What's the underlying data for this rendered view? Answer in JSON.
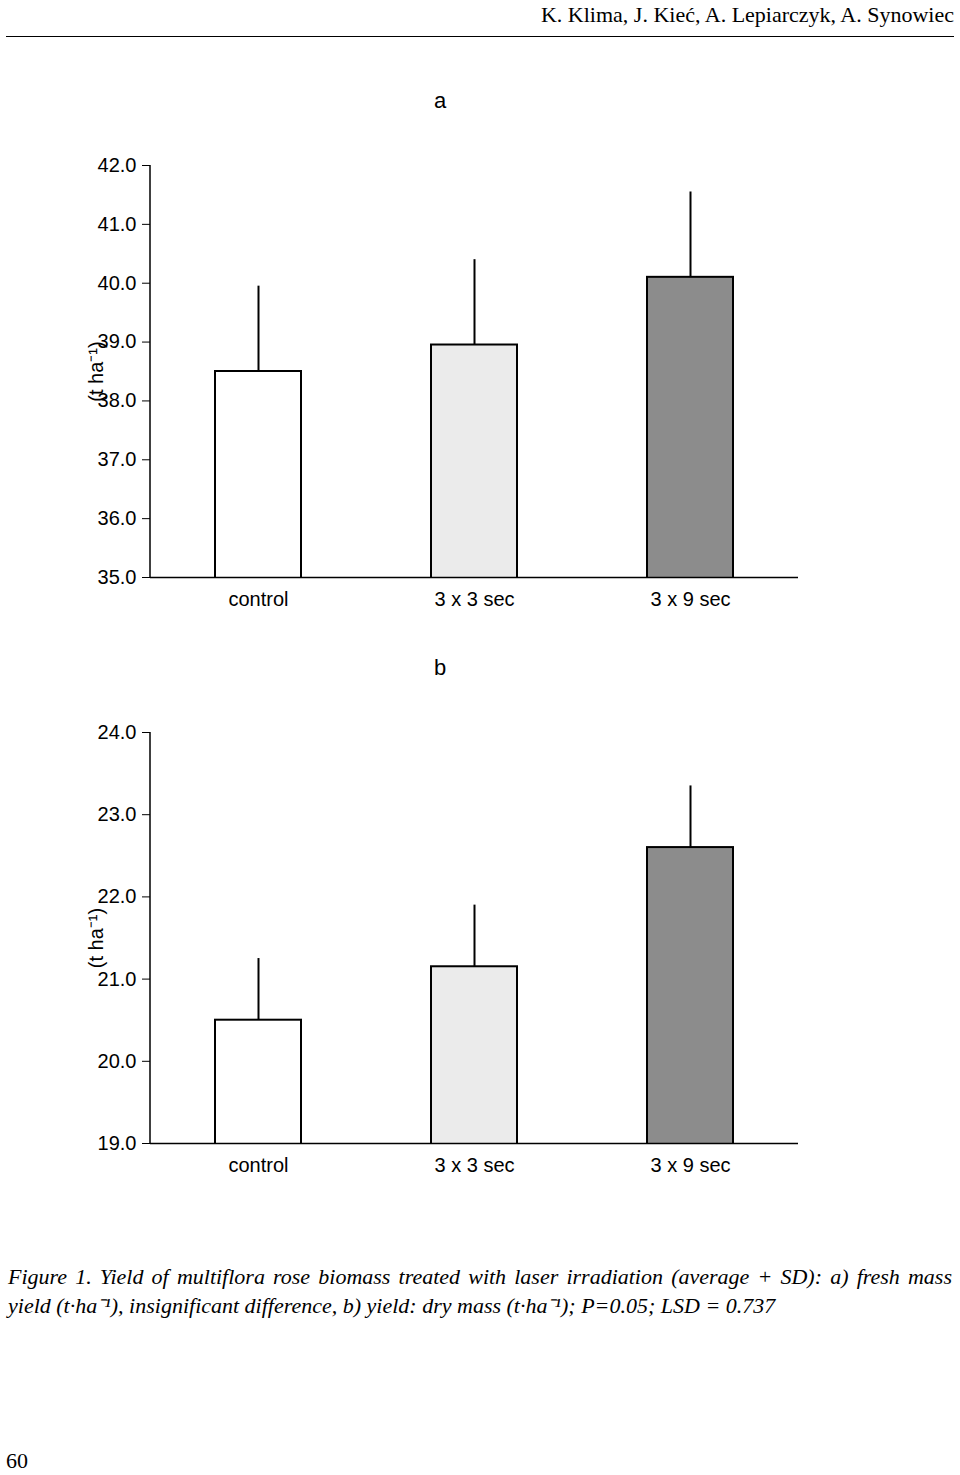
{
  "header": "K. Klima, J. Kieć, A. Lepiarczyk, A. Synowiec",
  "chart_data": [
    {
      "type": "bar",
      "title": "a",
      "y_label": "(t ha⁻¹)",
      "categories": [
        "control",
        "3 x 3 sec",
        "3 x 9 sec"
      ],
      "values": [
        38.5,
        38.95,
        40.1
      ],
      "errors": [
        1.45,
        1.45,
        1.45
      ],
      "colors": [
        "#ffffff",
        "#ebebeb",
        "#8c8c8c"
      ],
      "ylim": [
        35,
        42
      ],
      "yticks": [
        35,
        36,
        37,
        38,
        39,
        40,
        41,
        42
      ],
      "grid": false
    },
    {
      "type": "bar",
      "title": "b",
      "y_label": "(t ha⁻¹)",
      "categories": [
        "control",
        "3 x 3 sec",
        "3 x 9 sec"
      ],
      "values": [
        20.5,
        21.15,
        22.6
      ],
      "errors": [
        0.75,
        0.75,
        0.75
      ],
      "colors": [
        "#ffffff",
        "#ebebeb",
        "#8c8c8c"
      ],
      "ylim": [
        19,
        24
      ],
      "yticks": [
        19,
        20,
        21,
        22,
        23,
        24
      ],
      "grid": false
    }
  ],
  "caption": "Figure 1. Yield of multiflora rose biomass treated with laser irradiation (average + SD): a) fresh mass yield  (t·ha⁻¹), insignificant difference, b) yield: dry mass (t·ha⁻¹); P=0.05; LSD = 0.737",
  "page_number": 60
}
